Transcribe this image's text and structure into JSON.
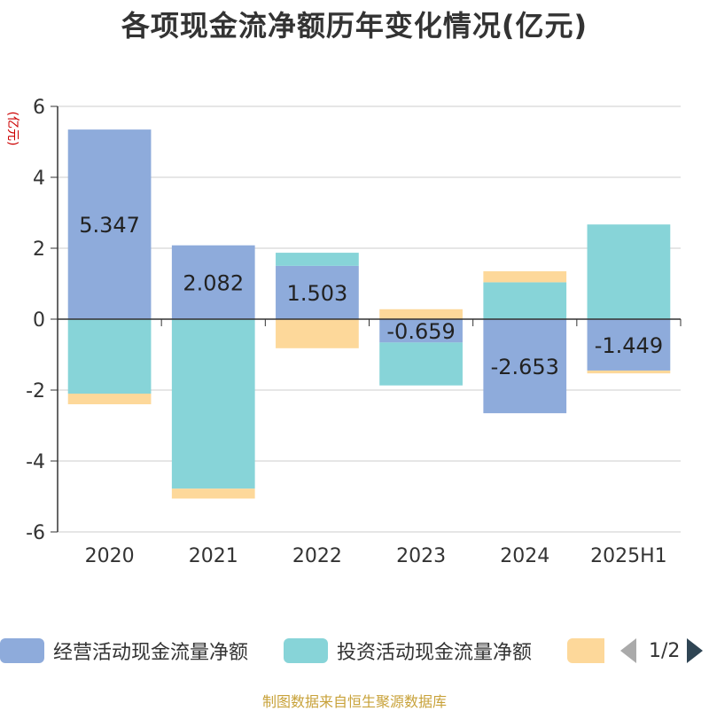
{
  "chart_data": {
    "type": "bar",
    "stacked": true,
    "title": "各项现金流净额历年变化情况(亿元)",
    "ylabel": "(亿元)",
    "categories": [
      "2020",
      "2021",
      "2022",
      "2023",
      "2024",
      "2025H1"
    ],
    "ylim": [
      -6,
      6
    ],
    "yticks": [
      -6,
      -4,
      -2,
      0,
      2,
      4,
      6
    ],
    "grid": true,
    "legend_position": "bottom",
    "series": [
      {
        "name": "经营活动现金流量净额",
        "color": "#8eabdb",
        "values": [
          5.347,
          2.082,
          1.503,
          -0.659,
          -2.653,
          -1.449
        ],
        "show_labels": true
      },
      {
        "name": "投资活动现金流量净额",
        "color": "#87d4d8",
        "values": [
          -2.1,
          -4.78,
          0.37,
          -1.21,
          1.04,
          2.67
        ],
        "show_labels": false
      },
      {
        "name": "",
        "color": "#fdd89a",
        "values": [
          -0.3,
          -0.28,
          -0.82,
          0.28,
          0.31,
          -0.08
        ],
        "show_labels": false
      }
    ]
  },
  "legend": {
    "page_text": "1/2"
  },
  "source": "制图数据来自恒生聚源数据库"
}
